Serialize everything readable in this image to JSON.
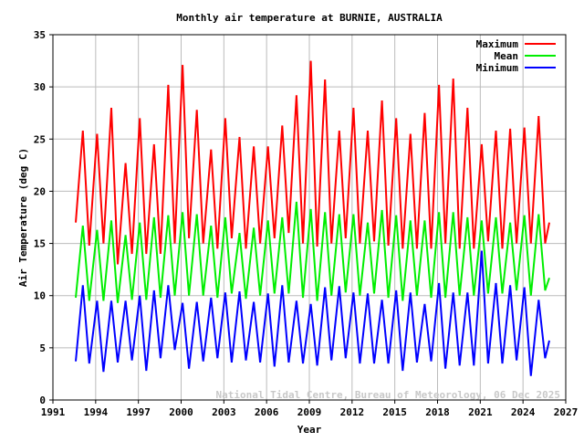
{
  "chart_data": {
    "type": "line",
    "title": "Monthly air temperature at BURNIE, AUSTRALIA",
    "xlabel": "Year",
    "ylabel": "Air Temperature (deg C)",
    "xlim": [
      1991,
      2027
    ],
    "ylim": [
      0,
      35
    ],
    "xticks": [
      1991,
      1994,
      1997,
      2000,
      2003,
      2006,
      2009,
      2012,
      2015,
      2018,
      2021,
      2024,
      2027
    ],
    "yticks": [
      0,
      5,
      10,
      15,
      20,
      25,
      30,
      35
    ],
    "grid": true,
    "legend_position": "top-right",
    "watermark": "National Tidal Centre, Bureau of Meteorology, 06 Dec 2025",
    "series": [
      {
        "name": "Maximum",
        "color": "#ff0000",
        "points": [
          [
            1992.6,
            17
          ],
          [
            1993.1,
            25.8
          ],
          [
            1993.55,
            14.8
          ],
          [
            1994.1,
            25.5
          ],
          [
            1994.55,
            15
          ],
          [
            1995.1,
            28
          ],
          [
            1995.55,
            13
          ],
          [
            1996.1,
            22.7
          ],
          [
            1996.55,
            14
          ],
          [
            1997.1,
            27
          ],
          [
            1997.55,
            14
          ],
          [
            1998.1,
            24.5
          ],
          [
            1998.55,
            14
          ],
          [
            1999.1,
            30.2
          ],
          [
            1999.55,
            15
          ],
          [
            2000.1,
            32.1
          ],
          [
            2000.55,
            15.5
          ],
          [
            2001.1,
            27.8
          ],
          [
            2001.55,
            15
          ],
          [
            2002.1,
            24
          ],
          [
            2002.55,
            14.5
          ],
          [
            2003.1,
            27
          ],
          [
            2003.55,
            15.5
          ],
          [
            2004.1,
            25.2
          ],
          [
            2004.55,
            14.5
          ],
          [
            2005.1,
            24.3
          ],
          [
            2005.55,
            15
          ],
          [
            2006.1,
            24.3
          ],
          [
            2006.55,
            15.5
          ],
          [
            2007.1,
            26.3
          ],
          [
            2007.55,
            16
          ],
          [
            2008.1,
            29.2
          ],
          [
            2008.55,
            15
          ],
          [
            2009.1,
            32.5
          ],
          [
            2009.55,
            14.7
          ],
          [
            2010.1,
            30.7
          ],
          [
            2010.55,
            15
          ],
          [
            2011.1,
            25.8
          ],
          [
            2011.55,
            15.5
          ],
          [
            2012.1,
            28
          ],
          [
            2012.55,
            15
          ],
          [
            2013.1,
            25.8
          ],
          [
            2013.55,
            15.2
          ],
          [
            2014.1,
            28.7
          ],
          [
            2014.55,
            14.8
          ],
          [
            2015.1,
            27
          ],
          [
            2015.55,
            14.5
          ],
          [
            2016.1,
            25.5
          ],
          [
            2016.55,
            14.5
          ],
          [
            2017.1,
            27.5
          ],
          [
            2017.55,
            14.5
          ],
          [
            2018.1,
            30.2
          ],
          [
            2018.55,
            15
          ],
          [
            2019.1,
            30.8
          ],
          [
            2019.55,
            14.5
          ],
          [
            2020.1,
            28
          ],
          [
            2020.55,
            14.5
          ],
          [
            2021.1,
            24.5
          ],
          [
            2021.55,
            15.2
          ],
          [
            2022.1,
            25.8
          ],
          [
            2022.55,
            14.5
          ],
          [
            2023.1,
            26
          ],
          [
            2023.55,
            15
          ],
          [
            2024.1,
            26.1
          ],
          [
            2024.55,
            15
          ],
          [
            2025.1,
            27.2
          ],
          [
            2025.55,
            15
          ],
          [
            2025.85,
            17
          ]
        ]
      },
      {
        "name": "Mean",
        "color": "#00ee00",
        "points": [
          [
            1992.6,
            9.8
          ],
          [
            1993.1,
            16.7
          ],
          [
            1993.55,
            9.5
          ],
          [
            1994.1,
            16.3
          ],
          [
            1994.55,
            9.5
          ],
          [
            1995.1,
            17.2
          ],
          [
            1995.55,
            9.3
          ],
          [
            1996.1,
            15.8
          ],
          [
            1996.55,
            9.6
          ],
          [
            1997.1,
            17
          ],
          [
            1997.55,
            9.6
          ],
          [
            1998.1,
            17.5
          ],
          [
            1998.55,
            9.8
          ],
          [
            1999.1,
            17.7
          ],
          [
            1999.55,
            10
          ],
          [
            2000.1,
            18
          ],
          [
            2000.55,
            10
          ],
          [
            2001.1,
            17.8
          ],
          [
            2001.55,
            10
          ],
          [
            2002.1,
            16.7
          ],
          [
            2002.55,
            9.8
          ],
          [
            2003.1,
            17.5
          ],
          [
            2003.55,
            10.2
          ],
          [
            2004.1,
            16
          ],
          [
            2004.55,
            9.7
          ],
          [
            2005.1,
            16.5
          ],
          [
            2005.55,
            10
          ],
          [
            2006.1,
            17.2
          ],
          [
            2006.55,
            10.2
          ],
          [
            2007.1,
            17.5
          ],
          [
            2007.55,
            10.2
          ],
          [
            2008.1,
            19
          ],
          [
            2008.55,
            9.8
          ],
          [
            2009.1,
            18.3
          ],
          [
            2009.55,
            9.5
          ],
          [
            2010.1,
            18
          ],
          [
            2010.55,
            10
          ],
          [
            2011.1,
            17.8
          ],
          [
            2011.55,
            10.3
          ],
          [
            2012.1,
            17.8
          ],
          [
            2012.55,
            10
          ],
          [
            2013.1,
            17
          ],
          [
            2013.55,
            10.2
          ],
          [
            2014.1,
            18.2
          ],
          [
            2014.55,
            9.8
          ],
          [
            2015.1,
            17.7
          ],
          [
            2015.55,
            9.5
          ],
          [
            2016.1,
            17.2
          ],
          [
            2016.55,
            10
          ],
          [
            2017.1,
            17.2
          ],
          [
            2017.55,
            9.8
          ],
          [
            2018.1,
            18
          ],
          [
            2018.55,
            9.8
          ],
          [
            2019.1,
            18
          ],
          [
            2019.55,
            10
          ],
          [
            2020.1,
            17.5
          ],
          [
            2020.55,
            10
          ],
          [
            2021.1,
            17.2
          ],
          [
            2021.55,
            10.2
          ],
          [
            2022.1,
            17.5
          ],
          [
            2022.55,
            10.2
          ],
          [
            2023.1,
            17
          ],
          [
            2023.55,
            10.5
          ],
          [
            2024.1,
            17.7
          ],
          [
            2024.55,
            10
          ],
          [
            2025.1,
            17.8
          ],
          [
            2025.55,
            10.5
          ],
          [
            2025.85,
            11.7
          ]
        ]
      },
      {
        "name": "Minimum",
        "color": "#0000ff",
        "points": [
          [
            1992.6,
            3.7
          ],
          [
            1993.1,
            11
          ],
          [
            1993.55,
            3.5
          ],
          [
            1994.1,
            9.5
          ],
          [
            1994.55,
            2.7
          ],
          [
            1995.1,
            9.5
          ],
          [
            1995.55,
            3.6
          ],
          [
            1996.1,
            9.5
          ],
          [
            1996.55,
            3.8
          ],
          [
            1997.1,
            10
          ],
          [
            1997.55,
            2.8
          ],
          [
            1998.1,
            10.5
          ],
          [
            1998.55,
            4
          ],
          [
            1999.1,
            11
          ],
          [
            1999.55,
            4.8
          ],
          [
            2000.1,
            9.3
          ],
          [
            2000.55,
            3
          ],
          [
            2001.1,
            9.4
          ],
          [
            2001.55,
            3.7
          ],
          [
            2002.1,
            9.8
          ],
          [
            2002.55,
            4
          ],
          [
            2003.1,
            10.3
          ],
          [
            2003.55,
            3.6
          ],
          [
            2004.1,
            10.4
          ],
          [
            2004.55,
            3.8
          ],
          [
            2005.1,
            9.4
          ],
          [
            2005.55,
            3.6
          ],
          [
            2006.1,
            10.2
          ],
          [
            2006.55,
            3.2
          ],
          [
            2007.1,
            11
          ],
          [
            2007.55,
            3.6
          ],
          [
            2008.1,
            9.5
          ],
          [
            2008.55,
            3.5
          ],
          [
            2009.1,
            9.2
          ],
          [
            2009.55,
            3.3
          ],
          [
            2010.1,
            10.8
          ],
          [
            2010.55,
            3.8
          ],
          [
            2011.1,
            10.9
          ],
          [
            2011.55,
            4
          ],
          [
            2012.1,
            10.3
          ],
          [
            2012.55,
            3.5
          ],
          [
            2013.1,
            10.2
          ],
          [
            2013.55,
            3.5
          ],
          [
            2014.1,
            9.6
          ],
          [
            2014.55,
            3.5
          ],
          [
            2015.1,
            10.5
          ],
          [
            2015.55,
            2.8
          ],
          [
            2016.1,
            10.3
          ],
          [
            2016.55,
            3.6
          ],
          [
            2017.1,
            9.2
          ],
          [
            2017.55,
            3.7
          ],
          [
            2018.1,
            11.2
          ],
          [
            2018.55,
            3
          ],
          [
            2019.1,
            10.3
          ],
          [
            2019.55,
            3.3
          ],
          [
            2020.1,
            10.3
          ],
          [
            2020.55,
            3.3
          ],
          [
            2021.1,
            14.3
          ],
          [
            2021.55,
            3.5
          ],
          [
            2022.1,
            11.2
          ],
          [
            2022.55,
            3.5
          ],
          [
            2023.1,
            11
          ],
          [
            2023.55,
            3.8
          ],
          [
            2024.1,
            10.8
          ],
          [
            2024.55,
            2.3
          ],
          [
            2025.1,
            9.6
          ],
          [
            2025.55,
            4
          ],
          [
            2025.85,
            5.7
          ]
        ]
      }
    ]
  }
}
